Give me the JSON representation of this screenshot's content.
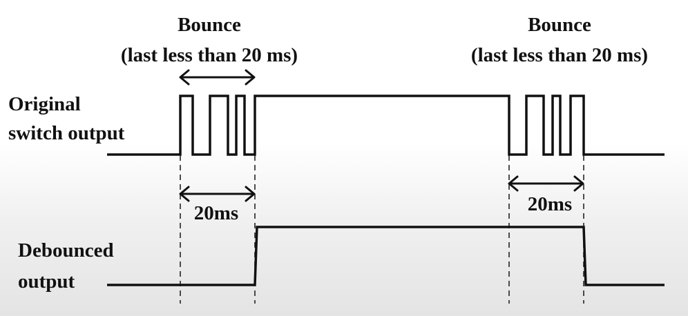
{
  "bounce_left": {
    "title": "Bounce",
    "subtitle": "(last less than 20 ms)"
  },
  "bounce_right": {
    "title": "Bounce",
    "subtitle": "(last less than 20 ms)"
  },
  "original_label": {
    "line1": "Original",
    "line2": "switch output"
  },
  "debounced_label": {
    "line1": "Debounced",
    "line2": "output"
  },
  "interval_left": "20ms",
  "interval_right": "20ms"
}
